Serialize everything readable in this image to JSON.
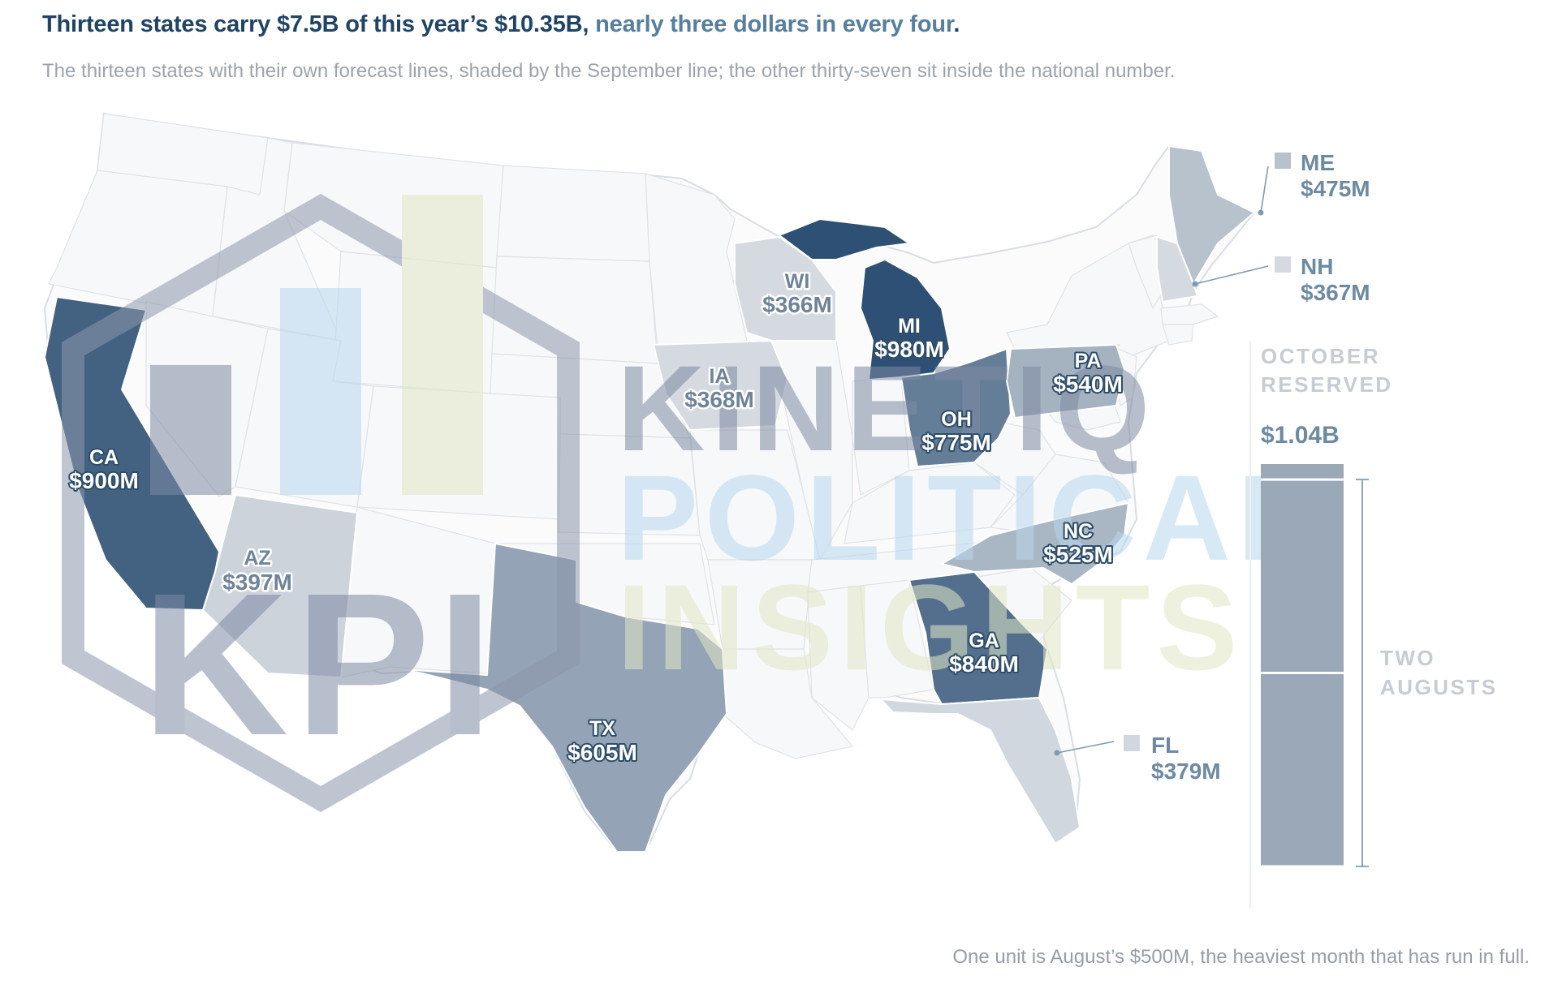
{
  "headline": {
    "main": "Thirteen states carry $7.5B of this year’s $10.35B, ",
    "accent": "nearly three dollars in every four",
    "end": "."
  },
  "subhead": "The thirteen states with their own forecast lines, shaded by the September line; the other thirty-seven sit inside the national number.",
  "footnote": "One unit is August’s $500M, the heaviest month that has run in full.",
  "colors": {
    "background": "#ffffff",
    "headline": "#1f4466",
    "accent": "#567f9f",
    "scale_low": "#d5dae0",
    "scale_high": "#2d5074",
    "other_states": "#f7f8f9",
    "reserve_bar": "#9ba8b7"
  },
  "states": [
    {
      "code": "CA",
      "value": "$900M",
      "amount_m": 900
    },
    {
      "code": "AZ",
      "value": "$397M",
      "amount_m": 397
    },
    {
      "code": "TX",
      "value": "$605M",
      "amount_m": 605
    },
    {
      "code": "IA",
      "value": "$368M",
      "amount_m": 368
    },
    {
      "code": "WI",
      "value": "$366M",
      "amount_m": 366
    },
    {
      "code": "MI",
      "value": "$980M",
      "amount_m": 980
    },
    {
      "code": "OH",
      "value": "$775M",
      "amount_m": 775
    },
    {
      "code": "PA",
      "value": "$540M",
      "amount_m": 540
    },
    {
      "code": "NC",
      "value": "$525M",
      "amount_m": 525
    },
    {
      "code": "GA",
      "value": "$840M",
      "amount_m": 840
    },
    {
      "code": "FL",
      "value": "$379M",
      "amount_m": 379
    },
    {
      "code": "ME",
      "value": "$475M",
      "amount_m": 475
    },
    {
      "code": "NH",
      "value": "$367M",
      "amount_m": 367
    }
  ],
  "reserve": {
    "label_line1": "OCTOBER",
    "label_line2": "RESERVED",
    "value": "$1.04B",
    "amount_m": 1040,
    "unit_m": 500,
    "bracket_line1": "TWO",
    "bracket_line2": "AUGUSTS"
  },
  "watermark": {
    "monogram": "KPI",
    "line1": "KINETIQ",
    "line2": "POLITICAL",
    "line3": "INSIGHTS"
  }
}
